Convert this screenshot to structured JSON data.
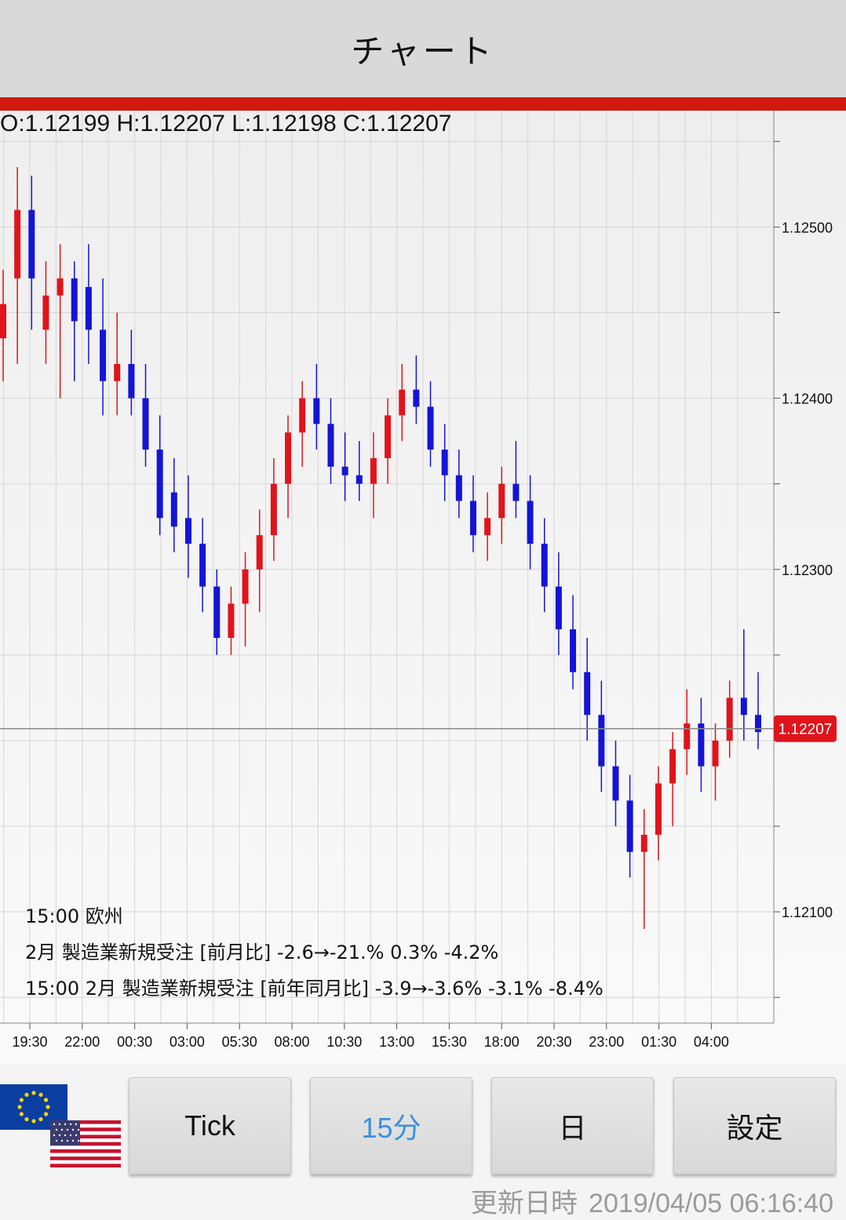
{
  "header": {
    "title": "チャート"
  },
  "ohlc": {
    "text": "O:1.12199 H:1.12207 L:1.12198 C:1.12207"
  },
  "colors": {
    "up": "#e0141b",
    "down": "#1414d6",
    "accent_red": "#d0190f",
    "active_tab": "#3a8fe0"
  },
  "chart_data": {
    "type": "candlestick",
    "y_ticks": [
      "1.12500",
      "1.12400",
      "1.12300",
      "1.12100"
    ],
    "y_tick_values": [
      1.125,
      1.124,
      1.123,
      1.121
    ],
    "ylim": [
      1.12035,
      1.12568
    ],
    "x_ticks": [
      "19:30",
      "22:00",
      "00:30",
      "03:00",
      "05:30",
      "08:00",
      "10:30",
      "13:00",
      "15:30",
      "18:00",
      "20:30",
      "23:00",
      "01:30",
      "04:00"
    ],
    "current_price": "1.12207",
    "current_price_value": 1.12207,
    "candles": [
      {
        "o": 1.12435,
        "h": 1.12475,
        "l": 1.1241,
        "c": 1.12455
      },
      {
        "o": 1.1247,
        "h": 1.12535,
        "l": 1.1242,
        "c": 1.1251
      },
      {
        "o": 1.1251,
        "h": 1.1253,
        "l": 1.1244,
        "c": 1.1247
      },
      {
        "o": 1.1244,
        "h": 1.1248,
        "l": 1.1242,
        "c": 1.1246
      },
      {
        "o": 1.1246,
        "h": 1.1249,
        "l": 1.124,
        "c": 1.1247
      },
      {
        "o": 1.1247,
        "h": 1.1248,
        "l": 1.1241,
        "c": 1.12445
      },
      {
        "o": 1.12465,
        "h": 1.1249,
        "l": 1.1242,
        "c": 1.1244
      },
      {
        "o": 1.1244,
        "h": 1.1247,
        "l": 1.1239,
        "c": 1.1241
      },
      {
        "o": 1.1241,
        "h": 1.1245,
        "l": 1.1239,
        "c": 1.1242
      },
      {
        "o": 1.1242,
        "h": 1.1244,
        "l": 1.1239,
        "c": 1.124
      },
      {
        "o": 1.124,
        "h": 1.1242,
        "l": 1.1236,
        "c": 1.1237
      },
      {
        "o": 1.1237,
        "h": 1.1239,
        "l": 1.1232,
        "c": 1.1233
      },
      {
        "o": 1.12345,
        "h": 1.12365,
        "l": 1.1231,
        "c": 1.12325
      },
      {
        "o": 1.1233,
        "h": 1.12355,
        "l": 1.12295,
        "c": 1.12315
      },
      {
        "o": 1.12315,
        "h": 1.1233,
        "l": 1.12275,
        "c": 1.1229
      },
      {
        "o": 1.1229,
        "h": 1.123,
        "l": 1.1225,
        "c": 1.1226
      },
      {
        "o": 1.1226,
        "h": 1.1229,
        "l": 1.1225,
        "c": 1.1228
      },
      {
        "o": 1.1228,
        "h": 1.1231,
        "l": 1.12255,
        "c": 1.123
      },
      {
        "o": 1.123,
        "h": 1.12335,
        "l": 1.12275,
        "c": 1.1232
      },
      {
        "o": 1.1232,
        "h": 1.12365,
        "l": 1.12305,
        "c": 1.1235
      },
      {
        "o": 1.1235,
        "h": 1.1239,
        "l": 1.1233,
        "c": 1.1238
      },
      {
        "o": 1.1238,
        "h": 1.1241,
        "l": 1.1236,
        "c": 1.124
      },
      {
        "o": 1.124,
        "h": 1.1242,
        "l": 1.1237,
        "c": 1.12385
      },
      {
        "o": 1.12385,
        "h": 1.124,
        "l": 1.1235,
        "c": 1.1236
      },
      {
        "o": 1.1236,
        "h": 1.1238,
        "l": 1.1234,
        "c": 1.12355
      },
      {
        "o": 1.12355,
        "h": 1.12375,
        "l": 1.1234,
        "c": 1.1235
      },
      {
        "o": 1.1235,
        "h": 1.1238,
        "l": 1.1233,
        "c": 1.12365
      },
      {
        "o": 1.12365,
        "h": 1.124,
        "l": 1.1235,
        "c": 1.1239
      },
      {
        "o": 1.1239,
        "h": 1.1242,
        "l": 1.12375,
        "c": 1.12405
      },
      {
        "o": 1.12405,
        "h": 1.12425,
        "l": 1.12385,
        "c": 1.12395
      },
      {
        "o": 1.12395,
        "h": 1.1241,
        "l": 1.1236,
        "c": 1.1237
      },
      {
        "o": 1.1237,
        "h": 1.12385,
        "l": 1.1234,
        "c": 1.12355
      },
      {
        "o": 1.12355,
        "h": 1.1237,
        "l": 1.1233,
        "c": 1.1234
      },
      {
        "o": 1.1234,
        "h": 1.12355,
        "l": 1.1231,
        "c": 1.1232
      },
      {
        "o": 1.1232,
        "h": 1.12345,
        "l": 1.12305,
        "c": 1.1233
      },
      {
        "o": 1.1233,
        "h": 1.1236,
        "l": 1.12315,
        "c": 1.1235
      },
      {
        "o": 1.1235,
        "h": 1.12375,
        "l": 1.1233,
        "c": 1.1234
      },
      {
        "o": 1.1234,
        "h": 1.12355,
        "l": 1.123,
        "c": 1.12315
      },
      {
        "o": 1.12315,
        "h": 1.1233,
        "l": 1.12275,
        "c": 1.1229
      },
      {
        "o": 1.1229,
        "h": 1.1231,
        "l": 1.1225,
        "c": 1.12265
      },
      {
        "o": 1.12265,
        "h": 1.12285,
        "l": 1.1223,
        "c": 1.1224
      },
      {
        "o": 1.1224,
        "h": 1.1226,
        "l": 1.122,
        "c": 1.12215
      },
      {
        "o": 1.12215,
        "h": 1.12235,
        "l": 1.1217,
        "c": 1.12185
      },
      {
        "o": 1.12185,
        "h": 1.122,
        "l": 1.1215,
        "c": 1.12165
      },
      {
        "o": 1.12165,
        "h": 1.1218,
        "l": 1.1212,
        "c": 1.12135
      },
      {
        "o": 1.12135,
        "h": 1.1216,
        "l": 1.1209,
        "c": 1.12145
      },
      {
        "o": 1.12145,
        "h": 1.12185,
        "l": 1.1213,
        "c": 1.12175
      },
      {
        "o": 1.12175,
        "h": 1.12205,
        "l": 1.1215,
        "c": 1.12195
      },
      {
        "o": 1.12195,
        "h": 1.1223,
        "l": 1.1218,
        "c": 1.1221
      },
      {
        "o": 1.1221,
        "h": 1.12225,
        "l": 1.1217,
        "c": 1.12185
      },
      {
        "o": 1.12185,
        "h": 1.1221,
        "l": 1.12165,
        "c": 1.122
      },
      {
        "o": 1.122,
        "h": 1.12235,
        "l": 1.1219,
        "c": 1.12225
      },
      {
        "o": 1.12225,
        "h": 1.12265,
        "l": 1.122,
        "c": 1.12215
      },
      {
        "o": 1.12215,
        "h": 1.1224,
        "l": 1.12195,
        "c": 1.12205
      }
    ]
  },
  "events": {
    "line1": "15:00 欧州",
    "line2": "2月 製造業新規受注 [前月比]  -2.6→-21.% 0.3% -4.2%",
    "line3": "15:00 2月 製造業新規受注 [前年同月比]  -3.9→-3.6% -3.1% -8.4%"
  },
  "flags": {
    "top": "eu-flag-icon",
    "bottom": "us-flag-icon"
  },
  "buttons": {
    "tick": "Tick",
    "m15": "15分",
    "day": "日",
    "settings": "設定"
  },
  "footer": {
    "label": "更新日時",
    "timestamp": "2019/04/05 06:16:40"
  }
}
